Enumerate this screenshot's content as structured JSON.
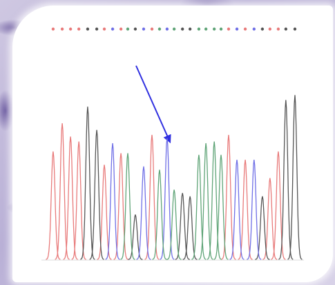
{
  "chart_data": {
    "type": "chromatogram",
    "xlim": [
      0,
      100
    ],
    "ylim": [
      0,
      100
    ],
    "series": [
      {
        "color": "#e87a7a",
        "x": [
          1.9,
          5.5,
          8.8,
          12.1,
          22.2,
          28.8,
          41.1,
          71.5,
          78.1,
          87.9,
          91.2
        ],
        "values": [
          65,
          82,
          74,
          71,
          57,
          64,
          75,
          75,
          60,
          49,
          65
        ]
      },
      {
        "color": "#555555",
        "x": [
          15.6,
          19.2,
          34.5,
          53.2,
          56.2,
          84.9,
          94.2,
          97.8
        ],
        "values": [
          92,
          78,
          27,
          40,
          38,
          38,
          96,
          99
        ]
      },
      {
        "color": "#6f6fe6",
        "x": [
          25.5,
          37.8,
          47.1,
          74.8,
          81.6
        ],
        "values": [
          70,
          56,
          73,
          60,
          60
        ]
      },
      {
        "color": "#5fa477",
        "x": [
          31.5,
          44.1,
          49.9,
          59.7,
          62.5,
          65.8,
          68.5
        ],
        "values": [
          64,
          54,
          42,
          63,
          70,
          71,
          63
        ]
      }
    ]
  }
}
